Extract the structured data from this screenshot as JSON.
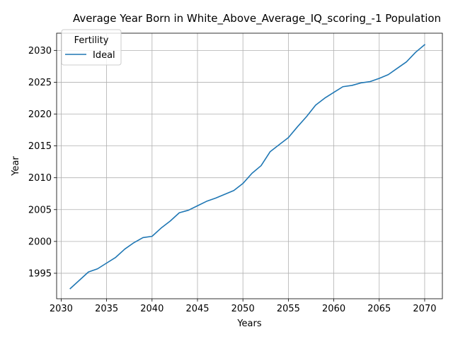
{
  "chart_data": {
    "type": "line",
    "title": "Average Year Born in White_Above_Average_IQ_scoring_-1 Population",
    "xlabel": "Years",
    "ylabel": "Year",
    "xlim": [
      2029.5,
      2071.95
    ],
    "ylim": [
      1991.0,
      2032.7
    ],
    "xticks": [
      2030,
      2035,
      2040,
      2045,
      2050,
      2055,
      2060,
      2065,
      2070
    ],
    "yticks": [
      1995,
      2000,
      2005,
      2010,
      2015,
      2020,
      2025,
      2030
    ],
    "grid": true,
    "legend": {
      "title": "Fertility",
      "placement": "upper left"
    },
    "colors": {
      "series_0": "#1f77b4"
    },
    "series": [
      {
        "name": "Ideal",
        "x": [
          2031,
          2032,
          2033,
          2034,
          2035,
          2036,
          2037,
          2038,
          2039,
          2040,
          2041,
          2042,
          2043,
          2044,
          2045,
          2046,
          2047,
          2048,
          2049,
          2050,
          2051,
          2052,
          2053,
          2054,
          2055,
          2056,
          2057,
          2058,
          2059,
          2060,
          2061,
          2062,
          2063,
          2064,
          2065,
          2066,
          2067,
          2068,
          2069,
          2070
        ],
        "y": [
          1992.6,
          1993.9,
          1995.2,
          1995.7,
          1996.6,
          1997.5,
          1998.8,
          1999.8,
          2000.6,
          2000.8,
          2002.1,
          2003.2,
          2004.5,
          2004.9,
          2005.6,
          2006.3,
          2006.8,
          2007.4,
          2008.0,
          2009.1,
          2010.7,
          2011.9,
          2014.1,
          2015.2,
          2016.3,
          2018.0,
          2019.6,
          2021.4,
          2022.5,
          2023.4,
          2024.3,
          2024.5,
          2024.9,
          2025.1,
          2025.6,
          2026.2,
          2027.2,
          2028.2,
          2029.7,
          2030.9
        ]
      }
    ]
  }
}
